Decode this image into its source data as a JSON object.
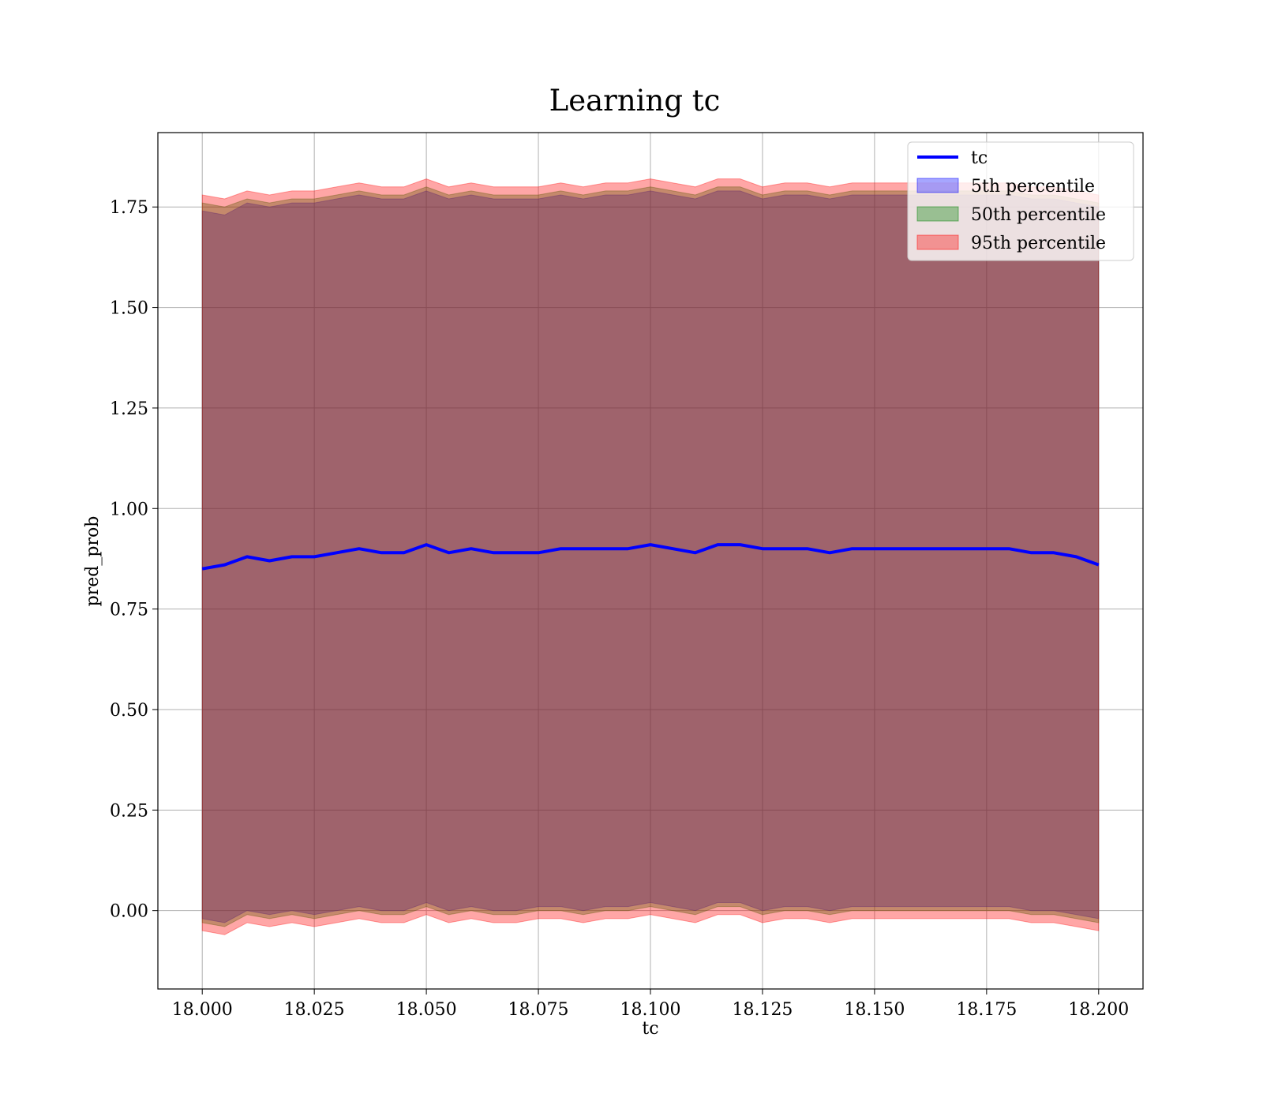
{
  "chart_data": {
    "type": "area",
    "title": "Learning tc",
    "xlabel": "tc",
    "ylabel": "pred_prob",
    "xlim": [
      17.9901,
      18.2099
    ],
    "ylim": [
      -0.195,
      1.935
    ],
    "grid": true,
    "legend_position": "top-right",
    "x_ticks": [
      18.0,
      18.025,
      18.05,
      18.075,
      18.1,
      18.125,
      18.15,
      18.175,
      18.2
    ],
    "x_tick_labels": [
      "18.000",
      "18.025",
      "18.050",
      "18.075",
      "18.100",
      "18.125",
      "18.150",
      "18.175",
      "18.200"
    ],
    "y_ticks": [
      0.0,
      0.25,
      0.5,
      0.75,
      1.0,
      1.25,
      1.5,
      1.75
    ],
    "y_tick_labels": [
      "0.00",
      "0.25",
      "0.50",
      "0.75",
      "1.00",
      "1.25",
      "1.50",
      "1.75"
    ],
    "x": [
      18.0,
      18.005,
      18.01,
      18.015,
      18.02,
      18.025,
      18.03,
      18.035,
      18.04,
      18.045,
      18.05,
      18.055,
      18.06,
      18.065,
      18.07,
      18.075,
      18.08,
      18.085,
      18.09,
      18.095,
      18.1,
      18.105,
      18.11,
      18.115,
      18.12,
      18.125,
      18.13,
      18.135,
      18.14,
      18.145,
      18.15,
      18.155,
      18.16,
      18.165,
      18.17,
      18.175,
      18.18,
      18.185,
      18.19,
      18.195,
      18.2
    ],
    "series": [
      {
        "name": "tc",
        "kind": "line",
        "color": "#0000ff",
        "values": [
          0.85,
          0.86,
          0.88,
          0.87,
          0.88,
          0.88,
          0.89,
          0.9,
          0.89,
          0.89,
          0.91,
          0.89,
          0.9,
          0.89,
          0.89,
          0.89,
          0.9,
          0.9,
          0.9,
          0.9,
          0.91,
          0.9,
          0.89,
          0.91,
          0.91,
          0.9,
          0.9,
          0.9,
          0.89,
          0.9,
          0.9,
          0.9,
          0.9,
          0.9,
          0.9,
          0.9,
          0.9,
          0.89,
          0.89,
          0.88,
          0.86
        ]
      },
      {
        "name": "5th percentile",
        "kind": "band",
        "color": "#0000ff",
        "lower": [
          -0.02,
          -0.03,
          0.0,
          -0.01,
          0.0,
          -0.01,
          0.0,
          0.01,
          0.0,
          0.0,
          0.02,
          0.0,
          0.01,
          0.0,
          0.0,
          0.01,
          0.01,
          0.0,
          0.01,
          0.01,
          0.02,
          0.01,
          0.0,
          0.02,
          0.02,
          0.0,
          0.01,
          0.01,
          0.0,
          0.01,
          0.01,
          0.01,
          0.01,
          0.01,
          0.01,
          0.01,
          0.01,
          0.0,
          0.0,
          -0.01,
          -0.02
        ],
        "upper": [
          1.74,
          1.73,
          1.76,
          1.75,
          1.76,
          1.76,
          1.77,
          1.78,
          1.77,
          1.77,
          1.79,
          1.77,
          1.78,
          1.77,
          1.77,
          1.77,
          1.78,
          1.77,
          1.78,
          1.78,
          1.79,
          1.78,
          1.77,
          1.79,
          1.79,
          1.77,
          1.78,
          1.78,
          1.77,
          1.78,
          1.78,
          1.78,
          1.78,
          1.78,
          1.78,
          1.78,
          1.78,
          1.77,
          1.77,
          1.76,
          1.75
        ]
      },
      {
        "name": "50th percentile",
        "kind": "band",
        "color": "#008000",
        "lower": [
          -0.03,
          -0.04,
          -0.01,
          -0.02,
          -0.01,
          -0.02,
          -0.01,
          0.0,
          -0.01,
          -0.01,
          0.01,
          -0.01,
          0.0,
          -0.01,
          -0.01,
          0.0,
          0.0,
          -0.01,
          0.0,
          0.0,
          0.01,
          0.0,
          -0.01,
          0.01,
          0.01,
          -0.01,
          0.0,
          0.0,
          -0.01,
          0.0,
          0.0,
          0.0,
          0.0,
          0.0,
          0.0,
          0.0,
          0.0,
          -0.01,
          -0.01,
          -0.02,
          -0.03
        ],
        "upper": [
          1.76,
          1.75,
          1.77,
          1.76,
          1.77,
          1.77,
          1.78,
          1.79,
          1.78,
          1.78,
          1.8,
          1.78,
          1.79,
          1.78,
          1.78,
          1.78,
          1.79,
          1.78,
          1.79,
          1.79,
          1.8,
          1.79,
          1.78,
          1.8,
          1.8,
          1.78,
          1.79,
          1.79,
          1.78,
          1.79,
          1.79,
          1.79,
          1.79,
          1.79,
          1.79,
          1.79,
          1.79,
          1.78,
          1.78,
          1.77,
          1.76
        ]
      },
      {
        "name": "95th percentile",
        "kind": "band",
        "color": "#ff0000",
        "lower": [
          -0.05,
          -0.06,
          -0.03,
          -0.04,
          -0.03,
          -0.04,
          -0.03,
          -0.02,
          -0.03,
          -0.03,
          -0.01,
          -0.03,
          -0.02,
          -0.03,
          -0.03,
          -0.02,
          -0.02,
          -0.03,
          -0.02,
          -0.02,
          -0.01,
          -0.02,
          -0.03,
          -0.01,
          -0.01,
          -0.03,
          -0.02,
          -0.02,
          -0.03,
          -0.02,
          -0.02,
          -0.02,
          -0.02,
          -0.02,
          -0.02,
          -0.02,
          -0.02,
          -0.03,
          -0.03,
          -0.04,
          -0.05
        ],
        "upper": [
          1.78,
          1.77,
          1.79,
          1.78,
          1.79,
          1.79,
          1.8,
          1.81,
          1.8,
          1.8,
          1.82,
          1.8,
          1.81,
          1.8,
          1.8,
          1.8,
          1.81,
          1.8,
          1.81,
          1.81,
          1.82,
          1.81,
          1.8,
          1.82,
          1.82,
          1.8,
          1.81,
          1.81,
          1.8,
          1.81,
          1.81,
          1.81,
          1.81,
          1.81,
          1.81,
          1.81,
          1.81,
          1.8,
          1.8,
          1.79,
          1.78
        ]
      }
    ]
  }
}
